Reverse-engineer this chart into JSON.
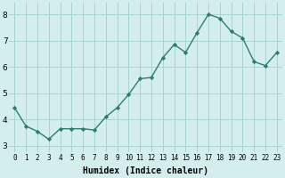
{
  "x": [
    0,
    1,
    2,
    3,
    4,
    5,
    6,
    7,
    8,
    9,
    10,
    11,
    12,
    13,
    14,
    15,
    16,
    17,
    18,
    19,
    20,
    21,
    22,
    23
  ],
  "y": [
    4.45,
    3.75,
    3.55,
    3.25,
    3.65,
    3.65,
    3.65,
    3.6,
    4.1,
    4.45,
    4.95,
    5.55,
    5.6,
    6.35,
    6.85,
    6.55,
    7.3,
    8.0,
    7.85,
    7.35,
    7.1,
    6.2,
    6.05,
    6.55
  ],
  "line_color": "#2d7d6e",
  "marker": "D",
  "marker_size": 2.2,
  "bg_color": "#d4eeee",
  "grid_color": "#aad4d4",
  "xlabel": "Humidex (Indice chaleur)",
  "ylim": [
    2.75,
    8.45
  ],
  "xlim": [
    -0.5,
    23.5
  ],
  "yticks": [
    3,
    4,
    5,
    6,
    7,
    8
  ],
  "xticks": [
    0,
    1,
    2,
    3,
    4,
    5,
    6,
    7,
    8,
    9,
    10,
    11,
    12,
    13,
    14,
    15,
    16,
    17,
    18,
    19,
    20,
    21,
    22,
    23
  ],
  "xtick_labels": [
    "0",
    "1",
    "2",
    "3",
    "4",
    "5",
    "6",
    "7",
    "8",
    "9",
    "10",
    "11",
    "12",
    "13",
    "14",
    "15",
    "16",
    "17",
    "18",
    "19",
    "20",
    "21",
    "22",
    "23"
  ],
  "xlabel_fontsize": 7.0,
  "xlabel_bold": true,
  "ytick_fontsize": 6.5,
  "xtick_fontsize": 5.5,
  "linewidth": 1.0
}
